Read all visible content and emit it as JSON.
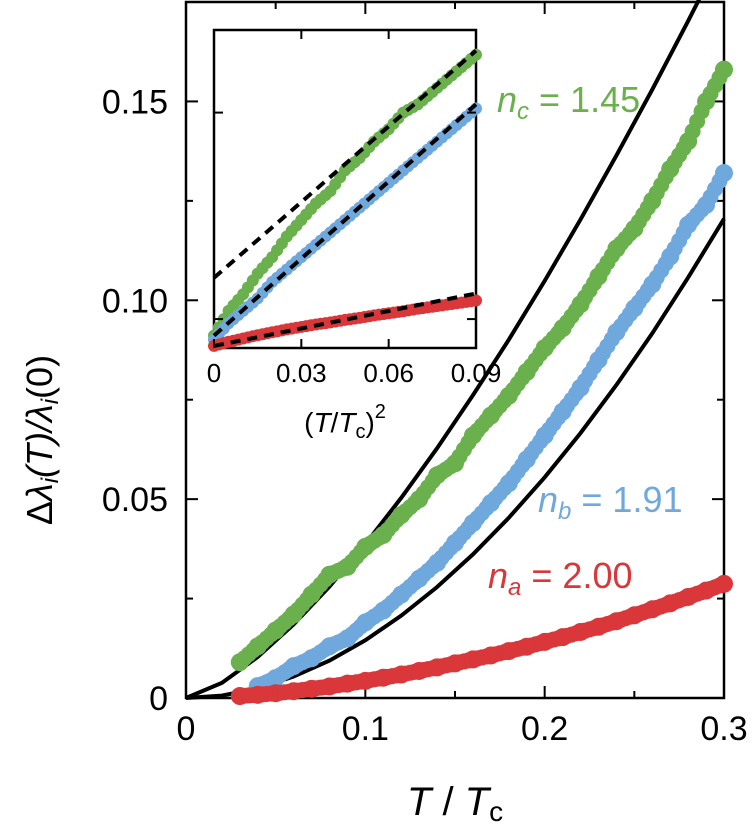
{
  "chart_data": [
    {
      "type": "scatter",
      "title": "",
      "xlabel": {
        "main": "T",
        "sep": " / ",
        "var": "T",
        "sub": "c"
      },
      "ylabel": {
        "delta": "Δ",
        "lambda1": "λ",
        "i1": "i",
        "mid": "(T)/",
        "lambda2": "λ",
        "i2": "i",
        "end": "(0)"
      },
      "xlim": [
        0,
        0.3
      ],
      "ylim": [
        0,
        0.175
      ],
      "x_ticks": [
        0,
        0.1,
        0.2,
        0.3
      ],
      "x_tick_labels": [
        "0",
        "0.1",
        "0.2",
        "0.3"
      ],
      "y_ticks": [
        0,
        0.05,
        0.1,
        0.15
      ],
      "y_tick_labels": [
        "0",
        "0.05",
        "0.10",
        "0.15"
      ],
      "grid": false,
      "series": [
        {
          "name": "c",
          "label": {
            "n": "n",
            "sub": "c",
            "value": " = 1.45"
          },
          "color": "#6ab04c",
          "x": [
            0.03,
            0.04,
            0.05,
            0.06,
            0.07,
            0.08,
            0.09,
            0.1,
            0.11,
            0.12,
            0.13,
            0.14,
            0.15,
            0.16,
            0.17,
            0.18,
            0.19,
            0.2,
            0.21,
            0.22,
            0.23,
            0.24,
            0.25,
            0.26,
            0.27,
            0.28,
            0.29,
            0.3
          ],
          "y": [
            0.009,
            0.013,
            0.017,
            0.021,
            0.026,
            0.031,
            0.033,
            0.038,
            0.041,
            0.046,
            0.05,
            0.056,
            0.059,
            0.066,
            0.071,
            0.076,
            0.082,
            0.088,
            0.093,
            0.099,
            0.106,
            0.113,
            0.118,
            0.125,
            0.133,
            0.14,
            0.15,
            0.158
          ]
        },
        {
          "name": "b",
          "label": {
            "n": "n",
            "sub": "b",
            "value": " = 1.91"
          },
          "color": "#6fa8dc",
          "x": [
            0.04,
            0.05,
            0.06,
            0.07,
            0.08,
            0.09,
            0.1,
            0.11,
            0.12,
            0.13,
            0.14,
            0.15,
            0.16,
            0.17,
            0.18,
            0.19,
            0.2,
            0.21,
            0.22,
            0.23,
            0.24,
            0.25,
            0.26,
            0.27,
            0.28,
            0.29,
            0.3
          ],
          "y": [
            0.003,
            0.005,
            0.008,
            0.01,
            0.013,
            0.015,
            0.019,
            0.022,
            0.026,
            0.03,
            0.034,
            0.039,
            0.044,
            0.049,
            0.054,
            0.06,
            0.066,
            0.072,
            0.078,
            0.085,
            0.092,
            0.098,
            0.104,
            0.111,
            0.119,
            0.124,
            0.132
          ]
        },
        {
          "name": "a",
          "label": {
            "n": "n",
            "sub": "a",
            "value": " = 2.00"
          },
          "color": "#d9373a",
          "x": [
            0.03,
            0.04,
            0.05,
            0.06,
            0.07,
            0.08,
            0.09,
            0.1,
            0.11,
            0.12,
            0.13,
            0.14,
            0.15,
            0.16,
            0.17,
            0.18,
            0.19,
            0.2,
            0.21,
            0.22,
            0.23,
            0.24,
            0.25,
            0.26,
            0.27,
            0.28,
            0.29,
            0.3
          ],
          "y": [
            0.0005,
            0.0008,
            0.0012,
            0.0017,
            0.0023,
            0.0029,
            0.0036,
            0.0043,
            0.0051,
            0.0059,
            0.0068,
            0.0077,
            0.0087,
            0.0097,
            0.0107,
            0.0118,
            0.0129,
            0.0141,
            0.0153,
            0.0166,
            0.0179,
            0.0193,
            0.0208,
            0.0223,
            0.0238,
            0.0254,
            0.027,
            0.0287
          ]
        }
      ],
      "fit_lines": [
        {
          "series": "c",
          "x": [
            0,
            0.02,
            0.04,
            0.06,
            0.08,
            0.1,
            0.12,
            0.14,
            0.16,
            0.18,
            0.2,
            0.22,
            0.24,
            0.26,
            0.28,
            0.3
          ],
          "y": [
            0,
            0.0038,
            0.0103,
            0.0185,
            0.028,
            0.0387,
            0.0503,
            0.0628,
            0.0761,
            0.0901,
            0.1049,
            0.1203,
            0.1364,
            0.153,
            0.1702,
            0.188
          ],
          "color": "#000000"
        },
        {
          "series": "b",
          "x": [
            0,
            0.02,
            0.04,
            0.06,
            0.08,
            0.1,
            0.12,
            0.14,
            0.16,
            0.18,
            0.2,
            0.22,
            0.24,
            0.26,
            0.28,
            0.3
          ],
          "y": [
            0,
            0.0006,
            0.0024,
            0.0054,
            0.0094,
            0.0145,
            0.0207,
            0.0279,
            0.0361,
            0.0453,
            0.0555,
            0.0666,
            0.0787,
            0.0917,
            0.1057,
            0.1205
          ],
          "color": "#000000"
        },
        {
          "series": "a",
          "x": [
            0.05,
            0.08,
            0.1,
            0.12,
            0.14,
            0.16,
            0.18,
            0.2,
            0.22,
            0.24,
            0.26,
            0.28,
            0.3
          ],
          "y": [
            0.0008,
            0.0021,
            0.0032,
            0.0046,
            0.0063,
            0.0082,
            0.0104,
            0.0128,
            0.0155,
            0.0184,
            0.0216,
            0.0251,
            0.0288
          ],
          "color": "#000000"
        }
      ]
    },
    {
      "type": "scatter",
      "title": "",
      "xlabel": {
        "open": "(",
        "var": "T",
        "slash": "/",
        "var2": "T",
        "sub": "c",
        "close": ")",
        "sup": "2"
      },
      "ylabel": "",
      "xlim": [
        0,
        0.09
      ],
      "ylim": [
        0.093,
        0.17
      ],
      "x_ticks": [
        0,
        0.03,
        0.06,
        0.09
      ],
      "x_tick_labels": [
        "0",
        "0.03",
        "0.06",
        "0.09"
      ],
      "grid": false,
      "series": [
        {
          "name": "c",
          "color": "#6ab04c",
          "x": [
            0.0,
            0.005,
            0.01,
            0.015,
            0.02,
            0.025,
            0.03,
            0.035,
            0.04,
            0.045,
            0.05,
            0.055,
            0.06,
            0.065,
            0.07,
            0.075,
            0.08,
            0.085,
            0.09
          ],
          "y": [
            0.096,
            0.102,
            0.106,
            0.111,
            0.115,
            0.12,
            0.124,
            0.128,
            0.131,
            0.136,
            0.139,
            0.143,
            0.146,
            0.15,
            0.152,
            0.155,
            0.158,
            0.161,
            0.164
          ]
        },
        {
          "name": "b",
          "color": "#6fa8dc",
          "x": [
            0.0,
            0.005,
            0.01,
            0.015,
            0.02,
            0.025,
            0.03,
            0.035,
            0.04,
            0.045,
            0.05,
            0.055,
            0.06,
            0.065,
            0.07,
            0.075,
            0.08,
            0.085,
            0.09
          ],
          "y": [
            0.095,
            0.099,
            0.102,
            0.105,
            0.109,
            0.112,
            0.115,
            0.118,
            0.121,
            0.124,
            0.127,
            0.13,
            0.133,
            0.136,
            0.139,
            0.142,
            0.145,
            0.148,
            0.151
          ]
        },
        {
          "name": "a",
          "color": "#d9373a",
          "x": [
            0.0,
            0.005,
            0.01,
            0.015,
            0.02,
            0.025,
            0.03,
            0.035,
            0.04,
            0.045,
            0.05,
            0.055,
            0.06,
            0.065,
            0.07,
            0.075,
            0.08,
            0.085,
            0.09
          ],
          "y": [
            0.0935,
            0.0945,
            0.0953,
            0.0961,
            0.0968,
            0.0975,
            0.0981,
            0.0987,
            0.0992,
            0.0998,
            0.1003,
            0.1009,
            0.1014,
            0.1019,
            0.1025,
            0.103,
            0.1035,
            0.104,
            0.1045
          ]
        }
      ],
      "fit_lines": [
        {
          "series": "c",
          "x": [
            0,
            0.09
          ],
          "y": [
            0.11,
            0.165
          ],
          "style": "dashed",
          "color": "#000000"
        },
        {
          "series": "b",
          "x": [
            0,
            0.09
          ],
          "y": [
            0.096,
            0.152
          ],
          "style": "dashed",
          "color": "#000000"
        },
        {
          "series": "a",
          "x": [
            0,
            0.09
          ],
          "y": [
            0.0935,
            0.1062
          ],
          "style": "dashed",
          "color": "#000000"
        }
      ]
    }
  ]
}
